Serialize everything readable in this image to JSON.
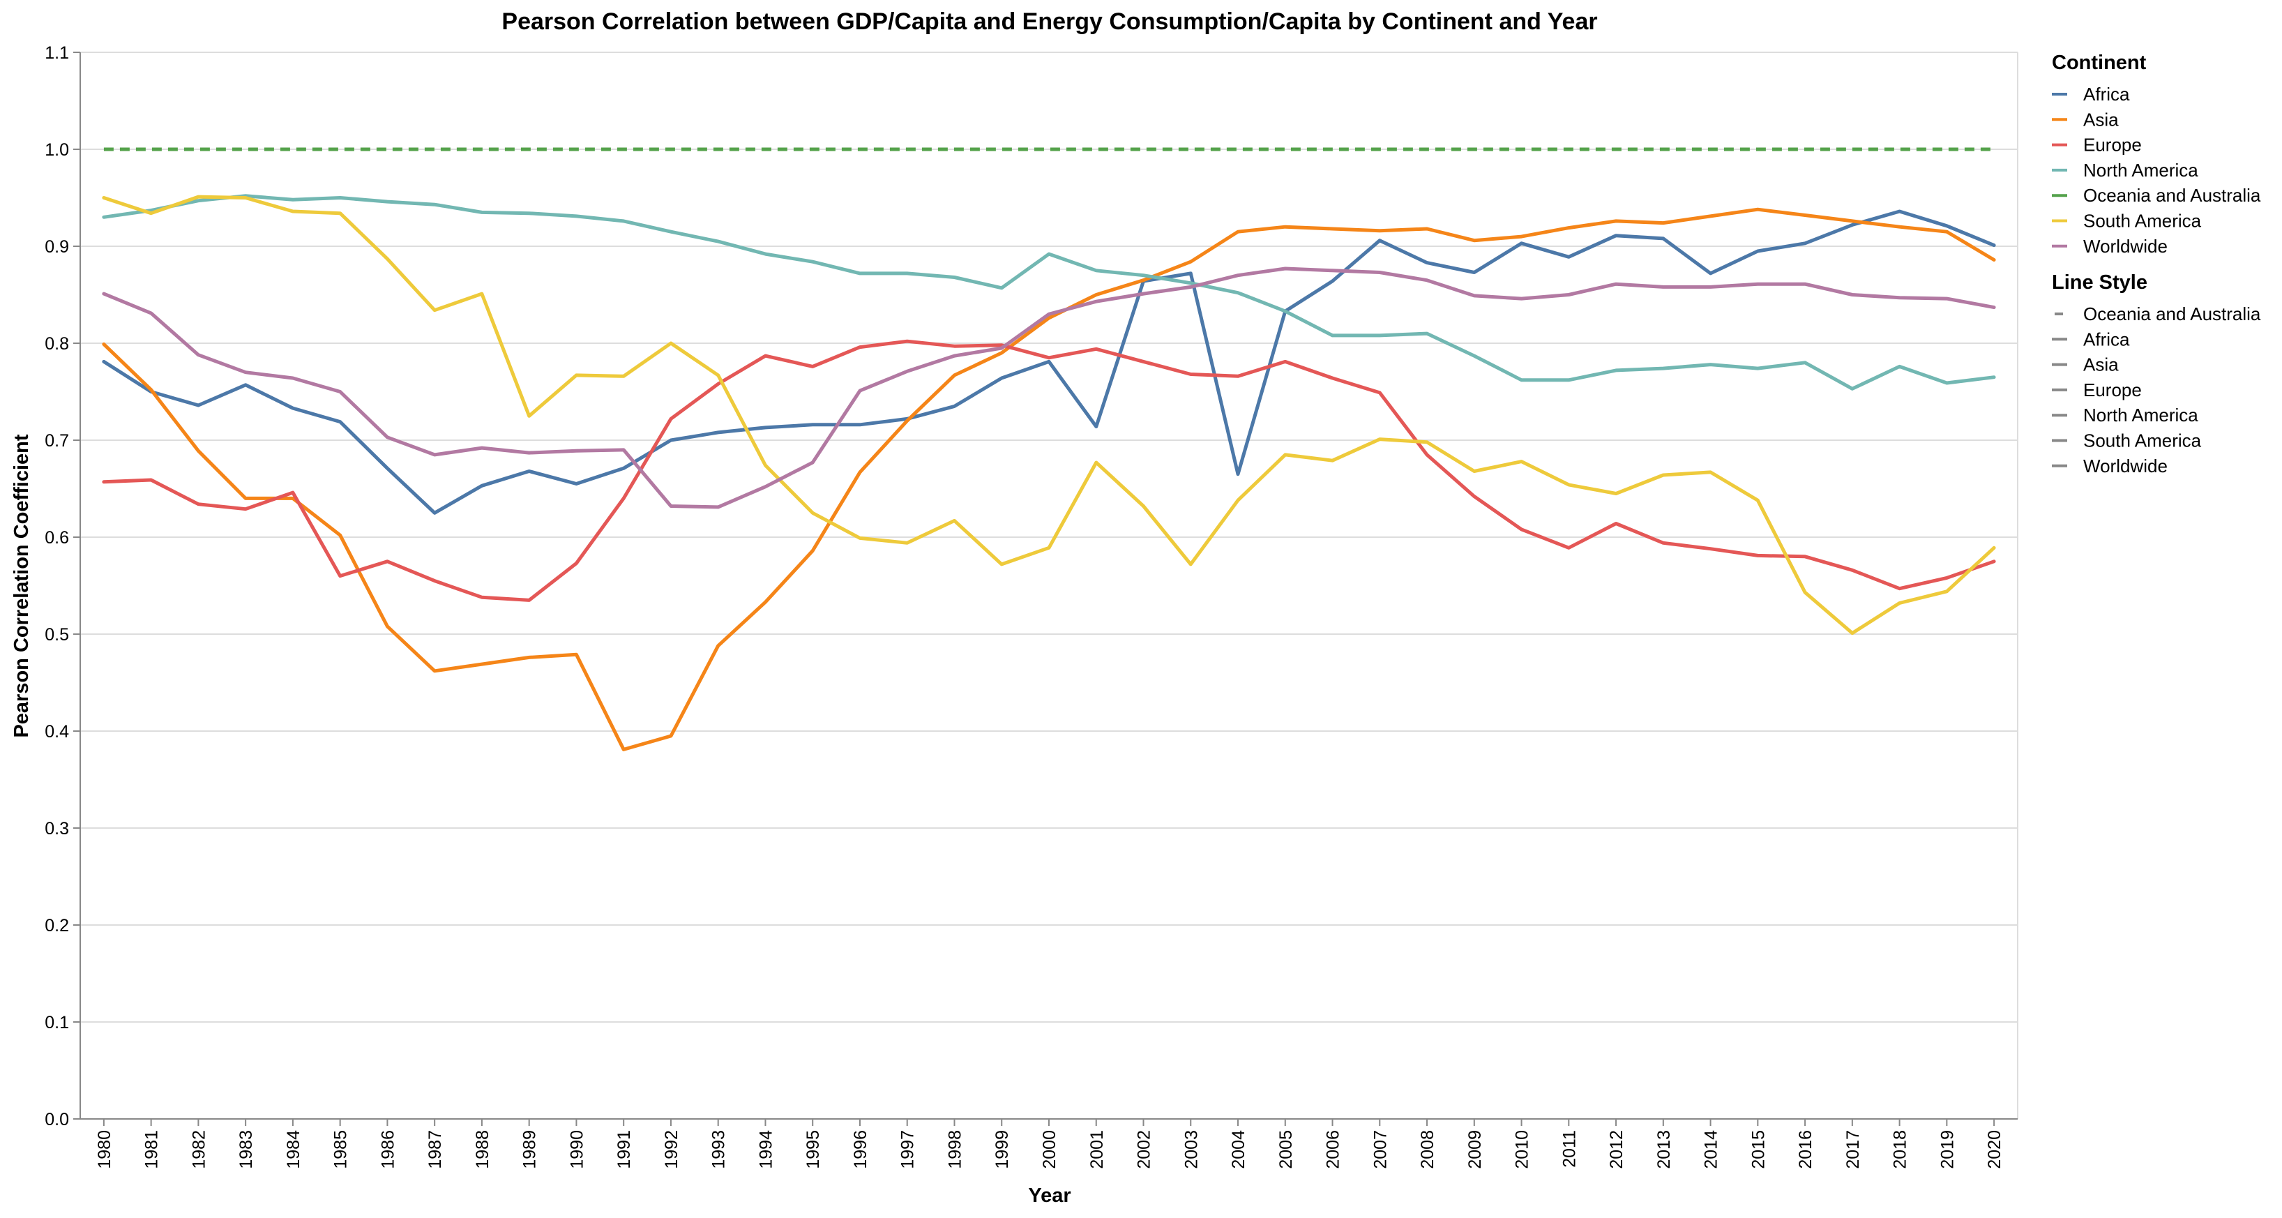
{
  "chart_data": {
    "type": "line",
    "title": "Pearson Correlation between GDP/Capita and Energy Consumption/Capita by Continent and Year",
    "xlabel": "Year",
    "ylabel": "Pearson Correlation Coefficient",
    "ylim": [
      0,
      1.1
    ],
    "yticks": [
      "0.0",
      "0.1",
      "0.2",
      "0.3",
      "0.4",
      "0.5",
      "0.6",
      "0.7",
      "0.8",
      "0.9",
      "1.0",
      "1.1"
    ],
    "x": [
      1980,
      1981,
      1982,
      1983,
      1984,
      1985,
      1986,
      1987,
      1988,
      1989,
      1990,
      1991,
      1992,
      1993,
      1994,
      1995,
      1996,
      1997,
      1998,
      1999,
      2000,
      2001,
      2002,
      2003,
      2004,
      2005,
      2006,
      2007,
      2008,
      2009,
      2010,
      2011,
      2012,
      2013,
      2014,
      2015,
      2016,
      2017,
      2018,
      2019,
      2020
    ],
    "grid": true,
    "legend_placement": "right",
    "series": [
      {
        "name": "Africa",
        "color": "#4c78a8",
        "dash": false,
        "values": [
          0.781,
          0.75,
          0.736,
          0.757,
          0.733,
          0.719,
          0.671,
          0.625,
          0.653,
          0.668,
          0.655,
          0.671,
          0.7,
          0.708,
          0.713,
          0.716,
          0.716,
          0.722,
          0.735,
          0.764,
          0.781,
          0.714,
          0.864,
          0.872,
          0.665,
          0.833,
          0.864,
          0.906,
          0.883,
          0.873,
          0.903,
          0.889,
          0.911,
          0.908,
          0.872,
          0.895,
          0.903,
          0.922,
          0.936,
          0.921,
          0.901
        ]
      },
      {
        "name": "Asia",
        "color": "#f58518",
        "dash": false,
        "values": [
          0.799,
          0.752,
          0.689,
          0.64,
          0.64,
          0.602,
          0.508,
          0.462,
          0.469,
          0.476,
          0.479,
          0.381,
          0.395,
          0.488,
          0.533,
          0.586,
          0.667,
          0.72,
          0.767,
          0.79,
          0.826,
          0.85,
          0.865,
          0.884,
          0.915,
          0.92,
          0.918,
          0.916,
          0.918,
          0.906,
          0.91,
          0.919,
          0.926,
          0.924,
          0.931,
          0.938,
          0.932,
          0.926,
          0.92,
          0.915,
          0.886
        ]
      },
      {
        "name": "Europe",
        "color": "#e45756",
        "dash": false,
        "values": [
          0.657,
          0.659,
          0.634,
          0.629,
          0.646,
          0.56,
          0.575,
          0.555,
          0.538,
          0.535,
          0.573,
          0.64,
          0.722,
          0.758,
          0.787,
          0.776,
          0.796,
          0.802,
          0.797,
          0.798,
          0.785,
          0.794,
          0.781,
          0.768,
          0.766,
          0.781,
          0.764,
          0.749,
          0.685,
          0.642,
          0.608,
          0.589,
          0.614,
          0.594,
          0.588,
          0.581,
          0.58,
          0.566,
          0.547,
          0.558,
          0.575
        ]
      },
      {
        "name": "North America",
        "color": "#72b7b2",
        "dash": false,
        "values": [
          0.93,
          0.937,
          0.947,
          0.952,
          0.948,
          0.95,
          0.946,
          0.943,
          0.935,
          0.934,
          0.931,
          0.926,
          0.915,
          0.905,
          0.892,
          0.884,
          0.872,
          0.872,
          0.868,
          0.857,
          0.892,
          0.875,
          0.87,
          0.862,
          0.852,
          0.833,
          0.808,
          0.808,
          0.81,
          0.787,
          0.762,
          0.762,
          0.772,
          0.774,
          0.778,
          0.774,
          0.78,
          0.753,
          0.776,
          0.759,
          0.765
        ]
      },
      {
        "name": "Oceania and Australia",
        "color": "#54a24b",
        "dash": true,
        "values": [
          1.0,
          1.0,
          1.0,
          1.0,
          1.0,
          1.0,
          1.0,
          1.0,
          1.0,
          1.0,
          1.0,
          1.0,
          1.0,
          1.0,
          1.0,
          1.0,
          1.0,
          1.0,
          1.0,
          1.0,
          1.0,
          1.0,
          1.0,
          1.0,
          1.0,
          1.0,
          1.0,
          1.0,
          1.0,
          1.0,
          1.0,
          1.0,
          1.0,
          1.0,
          1.0,
          1.0,
          1.0,
          1.0,
          1.0,
          1.0,
          1.0
        ]
      },
      {
        "name": "South America",
        "color": "#eeca3b",
        "dash": false,
        "values": [
          0.95,
          0.934,
          0.951,
          0.95,
          0.936,
          0.934,
          0.887,
          0.834,
          0.851,
          0.725,
          0.767,
          0.766,
          0.8,
          0.767,
          0.674,
          0.625,
          0.599,
          0.594,
          0.617,
          0.572,
          0.589,
          0.677,
          0.632,
          0.572,
          0.638,
          0.685,
          0.679,
          0.701,
          0.698,
          0.668,
          0.678,
          0.654,
          0.645,
          0.664,
          0.667,
          0.638,
          0.543,
          0.501,
          0.532,
          0.544,
          0.589
        ]
      },
      {
        "name": "Worldwide",
        "color": "#b279a2",
        "dash": false,
        "values": [
          0.851,
          0.831,
          0.788,
          0.77,
          0.764,
          0.75,
          0.703,
          0.685,
          0.692,
          0.687,
          0.689,
          0.69,
          0.632,
          0.631,
          0.652,
          0.677,
          0.751,
          0.771,
          0.787,
          0.795,
          0.83,
          0.843,
          0.851,
          0.858,
          0.87,
          0.877,
          0.875,
          0.873,
          0.865,
          0.849,
          0.846,
          0.85,
          0.861,
          0.858,
          0.858,
          0.861,
          0.861,
          0.85,
          0.847,
          0.846,
          0.837
        ]
      }
    ]
  },
  "legend": {
    "continent_title": "Continent",
    "continent_items": [
      {
        "label": "Africa",
        "color": "#4c78a8"
      },
      {
        "label": "Asia",
        "color": "#f58518"
      },
      {
        "label": "Europe",
        "color": "#e45756"
      },
      {
        "label": "North America",
        "color": "#72b7b2"
      },
      {
        "label": "Oceania and Australia",
        "color": "#54a24b"
      },
      {
        "label": "South America",
        "color": "#eeca3b"
      },
      {
        "label": "Worldwide",
        "color": "#b279a2"
      }
    ],
    "style_title": "Line Style",
    "style_items": [
      {
        "label": "Oceania and Australia",
        "dashed": true
      },
      {
        "label": "Africa",
        "dashed": false
      },
      {
        "label": "Asia",
        "dashed": false
      },
      {
        "label": "Europe",
        "dashed": false
      },
      {
        "label": "North America",
        "dashed": false
      },
      {
        "label": "South America",
        "dashed": false
      },
      {
        "label": "Worldwide",
        "dashed": false
      }
    ]
  }
}
